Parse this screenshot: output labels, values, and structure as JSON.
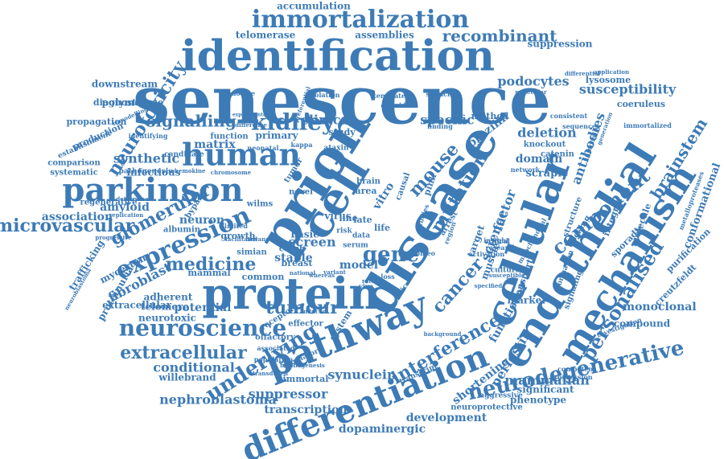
{
  "accent_color": "#3d7bb6",
  "words": [
    {
      "text": "senescence",
      "weight": 10
    },
    {
      "text": "prion",
      "weight": 9.5
    },
    {
      "text": "disease",
      "weight": 9.3
    },
    {
      "text": "identification",
      "weight": 8
    },
    {
      "text": "cellular",
      "weight": 7.8
    },
    {
      "text": "endothelial",
      "weight": 7.6
    },
    {
      "text": "protein",
      "weight": 7.4
    },
    {
      "text": "cell",
      "weight": 7.4
    },
    {
      "text": "pathway",
      "weight": 7
    },
    {
      "text": "mechanism",
      "weight": 6.8
    },
    {
      "text": "differentiation",
      "weight": 6.4
    },
    {
      "text": "parkinson",
      "weight": 6.2
    },
    {
      "text": "human",
      "weight": 6
    },
    {
      "text": "immortalization",
      "weight": 5.8
    },
    {
      "text": "expression",
      "weight": 5.6
    },
    {
      "text": "neurodegenerative",
      "weight": 5
    },
    {
      "text": "neuroscience",
      "weight": 5
    },
    {
      "text": "personalised",
      "weight": 5
    },
    {
      "text": "component",
      "weight": 5
    },
    {
      "text": "underlying",
      "weight": 4.6
    },
    {
      "text": "kidney",
      "weight": 4.6
    },
    {
      "text": "neurotoxicity",
      "weight": 4.4
    },
    {
      "text": "extracellular",
      "weight": 4.4
    },
    {
      "text": "glomerular",
      "weight": 4.4
    },
    {
      "text": "tumour",
      "weight": 4.4
    },
    {
      "text": "mouse",
      "weight": 4.4
    },
    {
      "text": "gene",
      "weight": 4.4
    },
    {
      "text": "medicine",
      "weight": 4.2
    },
    {
      "text": "cancer",
      "weight": 4.2
    },
    {
      "text": "microvascular",
      "weight": 4
    },
    {
      "text": "interference",
      "weight": 4
    },
    {
      "text": "mutation",
      "weight": 4
    },
    {
      "text": "brainstem",
      "weight": 3.6
    },
    {
      "text": "signalling",
      "weight": 3.6
    },
    {
      "text": "recombinant",
      "weight": 3.6
    },
    {
      "text": "susceptibility",
      "weight": 3.4
    },
    {
      "text": "mammalian",
      "weight": 3.4
    },
    {
      "text": "synuclein",
      "weight": 3.4
    },
    {
      "text": "suppressor",
      "weight": 3.4
    },
    {
      "text": "nephroblastoma",
      "weight": 3.4
    },
    {
      "text": "conditional",
      "weight": 3.4
    },
    {
      "text": "fibroblast",
      "weight": 3.4
    },
    {
      "text": "transcription",
      "weight": 3.2
    },
    {
      "text": "synthetic",
      "weight": 3.2
    },
    {
      "text": "screen",
      "weight": 3.2
    },
    {
      "text": "amyloid",
      "weight": 3.2
    },
    {
      "text": "periostin",
      "weight": 3.2
    },
    {
      "text": "antibodies",
      "weight": 3.2
    },
    {
      "text": "podocytes",
      "weight": 3.2
    },
    {
      "text": "clinical",
      "weight": 3.2
    },
    {
      "text": "deletion",
      "weight": 3.2
    },
    {
      "text": "association",
      "weight": 3
    },
    {
      "text": "development",
      "weight": 3
    },
    {
      "text": "dopaminergic",
      "weight": 3
    },
    {
      "text": "monoclonal",
      "weight": 3
    },
    {
      "text": "specific",
      "weight": 3
    },
    {
      "text": "brazilin",
      "weight": 3
    },
    {
      "text": "conformational",
      "weight": 2.8
    },
    {
      "text": "shortening",
      "weight": 2.8
    },
    {
      "text": "functional",
      "weight": 2.8
    },
    {
      "text": "scrapie",
      "weight": 2.8
    },
    {
      "text": "matrix",
      "weight": 2.8
    },
    {
      "text": "neuron",
      "weight": 2.8
    },
    {
      "text": "domain",
      "weight": 2.8
    },
    {
      "text": "potential",
      "weight": 2.8
    },
    {
      "text": "infectious",
      "weight": 2.6
    },
    {
      "text": "primary",
      "weight": 2.6
    },
    {
      "text": "stable",
      "weight": 2.6
    },
    {
      "text": "model",
      "weight": 2.6
    },
    {
      "text": "willebrand",
      "weight": 2.6
    },
    {
      "text": "extracellular",
      "weight": 2.4
    },
    {
      "text": "proteinuria",
      "weight": 2.4
    },
    {
      "text": "suppression",
      "weight": 2.4
    },
    {
      "text": "accumulation",
      "weight": 2.4
    },
    {
      "text": "assemblies",
      "weight": 2.4
    },
    {
      "text": "telomerase",
      "weight": 2.4
    },
    {
      "text": "polymerase",
      "weight": 2.4
    },
    {
      "text": "downstream",
      "weight": 2.4
    },
    {
      "text": "diagnostic",
      "weight": 2.4
    },
    {
      "text": "propagation",
      "weight": 2.4
    },
    {
      "text": "production",
      "weight": 2.4
    },
    {
      "text": "comparison",
      "weight": 2.2
    },
    {
      "text": "systematic",
      "weight": 2.2
    },
    {
      "text": "trafficking",
      "weight": 2.4
    },
    {
      "text": "regenerative",
      "weight": 2.2
    },
    {
      "text": "mycertan",
      "weight": 2.2
    },
    {
      "text": "adherent",
      "weight": 2.2
    },
    {
      "text": "telomere",
      "weight": 2.2
    },
    {
      "text": "neurotoxic",
      "weight": 2.2
    },
    {
      "text": "compound",
      "weight": 2.2
    },
    {
      "text": "creutzfeldt",
      "weight": 2.2
    },
    {
      "text": "purification",
      "weight": 2.2
    },
    {
      "text": "sporadic",
      "weight": 2.2
    },
    {
      "text": "integrin",
      "weight": 2.2
    },
    {
      "text": "molecule",
      "weight": 2.2
    },
    {
      "text": "coeruleus",
      "weight": 2.2
    },
    {
      "text": "lysosome",
      "weight": 2.2
    },
    {
      "text": "marker",
      "weight": 2.4
    },
    {
      "text": "significant",
      "weight": 2.2
    },
    {
      "text": "phenotype",
      "weight": 2.2
    },
    {
      "text": "immortal",
      "weight": 2.2
    },
    {
      "text": "growth",
      "weight": 2.2
    },
    {
      "text": "common",
      "weight": 2.2
    },
    {
      "text": "mammal",
      "weight": 2.2
    },
    {
      "text": "simian",
      "weight": 2
    },
    {
      "text": "basic",
      "weight": 2.2
    },
    {
      "text": "ctnnb",
      "weight": 2
    },
    {
      "text": "breast",
      "weight": 2.2
    },
    {
      "text": "virus",
      "weight": 2.2
    },
    {
      "text": "novel",
      "weight": 2
    },
    {
      "text": "vitro",
      "weight": 2.4
    },
    {
      "text": "area",
      "weight": 2.2
    },
    {
      "text": "brain",
      "weight": 2
    },
    {
      "text": "line",
      "weight": 2.2
    },
    {
      "text": "life",
      "weight": 2.2
    },
    {
      "text": "method",
      "weight": 2.2
    },
    {
      "text": "knockout",
      "weight": 2
    },
    {
      "text": "catenin",
      "weight": 2
    },
    {
      "text": "science",
      "weight": 2.6
    },
    {
      "text": "factor",
      "weight": 2.6
    },
    {
      "text": "target",
      "weight": 2.4
    },
    {
      "text": "muscle",
      "weight": 2.2
    },
    {
      "text": "transport",
      "weight": 2
    },
    {
      "text": "albumin",
      "weight": 2
    },
    {
      "text": "bypass",
      "weight": 2
    },
    {
      "text": "wilms",
      "weight": 2
    },
    {
      "text": "function",
      "weight": 2
    },
    {
      "text": "tumor",
      "weight": 2
    },
    {
      "text": "olfactory",
      "weight": 2
    },
    {
      "text": "effector",
      "weight": 2
    },
    {
      "text": "system",
      "weight": 2
    },
    {
      "text": "regulatory",
      "weight": 1.6
    },
    {
      "text": "transcript",
      "weight": 1.6
    },
    {
      "text": "aggressive",
      "weight": 1.6
    },
    {
      "text": "neuroprotective",
      "weight": 1.8
    },
    {
      "text": "study",
      "weight": 1.8
    },
    {
      "text": "candidate",
      "weight": 1.6
    },
    {
      "text": "pathogenesis",
      "weight": 1.6
    },
    {
      "text": "establishment",
      "weight": 1.6
    },
    {
      "text": "identifying",
      "weight": 1.4
    },
    {
      "text": "neonatal",
      "weight": 1.4
    },
    {
      "text": "kappa",
      "weight": 1.4
    },
    {
      "text": "ataxin",
      "weight": 1.4
    },
    {
      "text": "arrest",
      "weight": 1.6
    },
    {
      "text": "genetic",
      "weight": 1.4
    },
    {
      "text": "docking",
      "weight": 1.6
    },
    {
      "text": "structure",
      "weight": 1.6
    },
    {
      "text": "formation",
      "weight": 1.4
    },
    {
      "text": "signaling",
      "weight": 1.6
    },
    {
      "text": "culture",
      "weight": 1.4
    },
    {
      "text": "investigation",
      "weight": 1.4
    },
    {
      "text": "progression",
      "weight": 1.4
    },
    {
      "text": "competent",
      "weight": 1.4
    },
    {
      "text": "receptor",
      "weight": 1.6
    },
    {
      "text": "population",
      "weight": 1.4
    },
    {
      "text": "associated",
      "weight": 1.4
    },
    {
      "text": "induced",
      "weight": 1.4
    },
    {
      "text": "background",
      "weight": 1.2
    },
    {
      "text": "metalloproteases",
      "weight": 1.2
    },
    {
      "text": "immortalized",
      "weight": 1.2
    },
    {
      "text": "consistent",
      "weight": 1.2
    },
    {
      "text": "sequence",
      "weight": 1.2
    },
    {
      "text": "network",
      "weight": 1.2
    },
    {
      "text": "infectivity",
      "weight": 1.2
    },
    {
      "text": "application",
      "weight": 1
    },
    {
      "text": "differential",
      "weight": 1
    },
    {
      "text": "template",
      "weight": 1.2
    },
    {
      "text": "diploid",
      "weight": 1.2
    },
    {
      "text": "silencing",
      "weight": 1.2
    },
    {
      "text": "isolation",
      "weight": 1.2
    },
    {
      "text": "podocyte",
      "weight": 1.2
    },
    {
      "text": "preferential",
      "weight": 1
    },
    {
      "text": "remodelling",
      "weight": 1
    },
    {
      "text": "finding",
      "weight": 1.2
    },
    {
      "text": "critical",
      "weight": 1.2
    },
    {
      "text": "activation",
      "weight": 1.2
    },
    {
      "text": "research",
      "weight": 1.2
    },
    {
      "text": "insight",
      "weight": 1.2
    },
    {
      "text": "chromosome",
      "weight": 1
    },
    {
      "text": "chemokine",
      "weight": 1
    },
    {
      "text": "determined",
      "weight": 1
    },
    {
      "text": "replication",
      "weight": 1
    },
    {
      "text": "progressive",
      "weight": 1
    },
    {
      "text": "limited",
      "weight": 1.2
    },
    {
      "text": "facilitated",
      "weight": 1
    },
    {
      "text": "serum",
      "weight": 1.2
    },
    {
      "text": "risk",
      "weight": 1.2
    },
    {
      "text": "data",
      "weight": 1.2
    },
    {
      "text": "late",
      "weight": 1.4
    },
    {
      "text": "homeo",
      "weight": 1
    },
    {
      "text": "whereas",
      "weight": 1
    },
    {
      "text": "variant",
      "weight": 1
    },
    {
      "text": "fibrillogenesis",
      "weight": 1
    },
    {
      "text": "transduced",
      "weight": 1
    },
    {
      "text": "specified",
      "weight": 1
    },
    {
      "text": "advance",
      "weight": 1
    },
    {
      "text": "susceptible",
      "weight": 1
    },
    {
      "text": "generation",
      "weight": 1
    },
    {
      "text": "neuroblastoma",
      "weight": 1
    },
    {
      "text": "mitochondrial",
      "weight": 1
    },
    {
      "text": "natural",
      "weight": 1.2
    },
    {
      "text": "molecular",
      "weight": 1
    },
    {
      "text": "experimental",
      "weight": 1
    },
    {
      "text": "difference",
      "weight": 1
    },
    {
      "text": "national",
      "weight": 1
    },
    {
      "text": "causal",
      "weight": 1.2
    },
    {
      "text": "studies",
      "weight": 1
    },
    {
      "text": "region",
      "weight": 1
    },
    {
      "text": "pink",
      "weight": 1.2
    },
    {
      "text": "loss",
      "weight": 1
    },
    {
      "text": "vivo",
      "weight": 1
    },
    {
      "text": "rate",
      "weight": 1
    }
  ]
}
